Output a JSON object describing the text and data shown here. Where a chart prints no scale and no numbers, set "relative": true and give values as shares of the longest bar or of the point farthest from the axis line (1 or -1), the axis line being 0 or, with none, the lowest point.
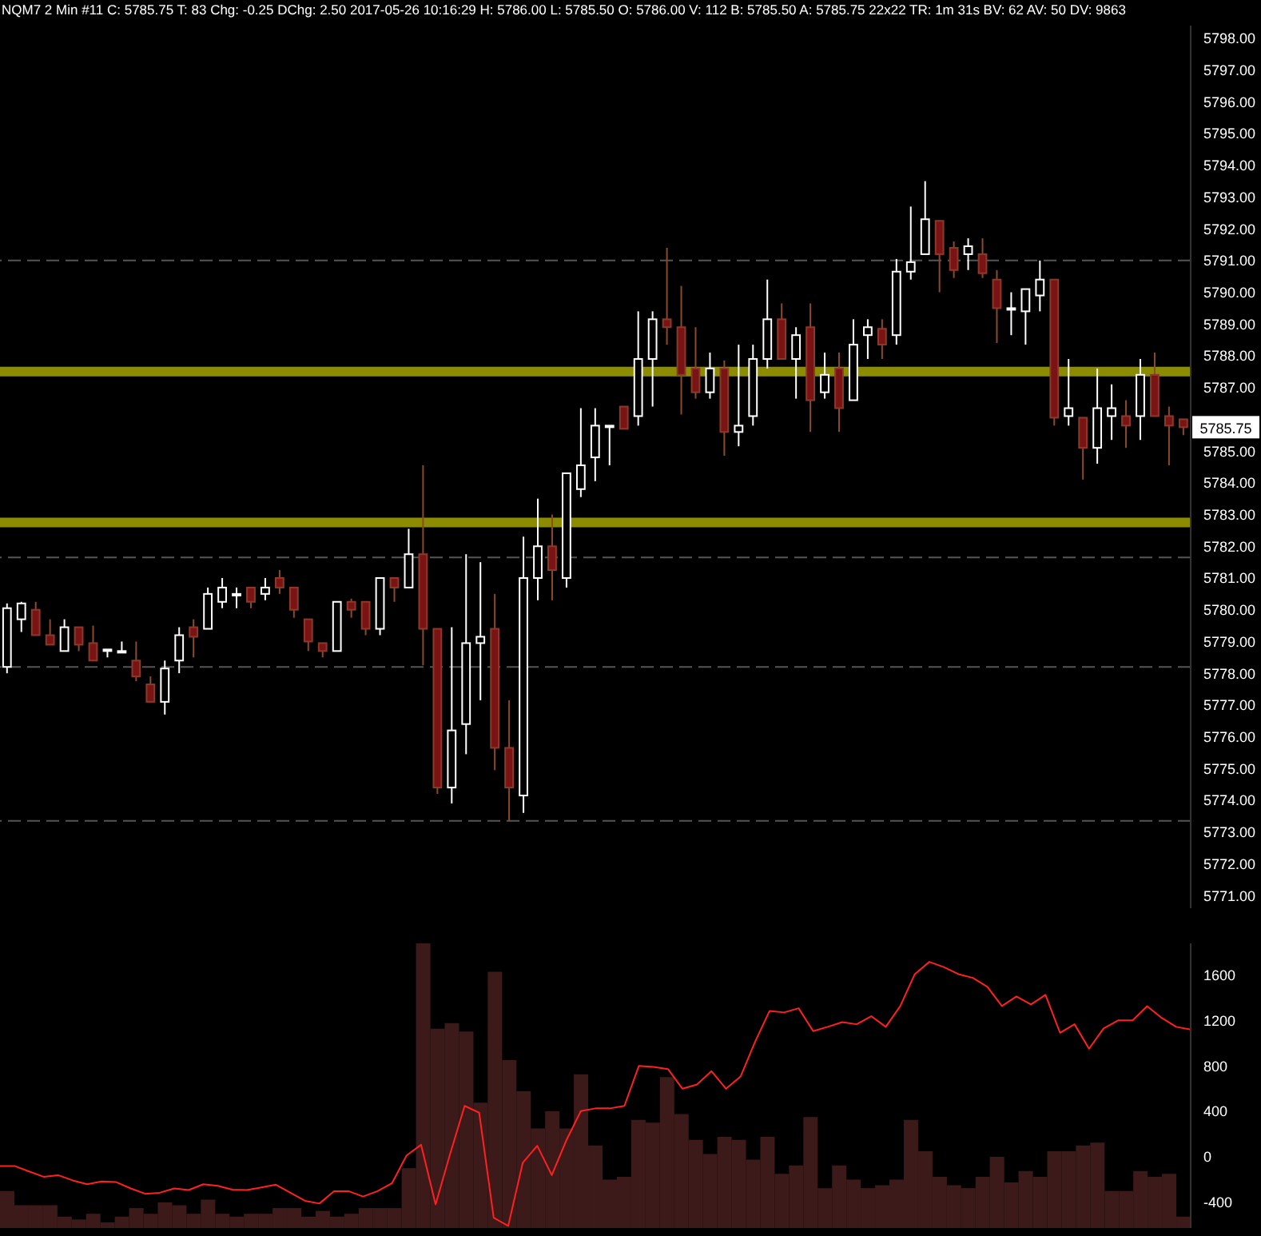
{
  "chart_data": [
    {
      "type": "candlestick",
      "annotations": [
        "NQM7 2 Min #11 C: 5785.75 T: 83 Chg: -0.25 DChg: 2.50 2017-05-26 10:16:29 H: 5786.00 L: 5785.50 O: 5786.00 V: 112 B: 5785.50 A: 5785.75 22x22 TR: 1m 31s BV: 62 AV: 50 DV: 9863",
        {
          "text": "5785.75",
          "y": 5785.75
        }
      ],
      "categories": [
        null,
        null,
        null,
        null,
        null,
        null,
        null,
        null,
        null,
        null,
        null,
        null,
        null,
        null,
        null,
        null,
        null,
        null,
        null,
        null,
        null,
        null,
        null,
        null,
        null,
        null,
        null,
        null,
        null,
        null,
        null,
        null,
        null,
        null,
        null,
        null,
        null,
        null,
        null,
        null,
        null,
        null,
        null,
        null,
        null,
        null,
        null,
        null,
        null,
        null,
        null,
        null,
        null,
        null,
        null,
        null,
        null,
        null,
        null,
        null,
        null,
        null,
        null,
        null,
        null,
        null,
        null,
        null,
        null,
        null,
        null,
        null,
        null,
        null,
        null,
        null,
        null,
        null,
        null,
        null,
        null,
        null,
        null
      ],
      "ohlc": [
        [
          5778.2,
          5780.2,
          5778.0,
          5780.05
        ],
        [
          5779.7,
          5780.25,
          5779.3,
          5780.2
        ],
        [
          5780.0,
          5780.25,
          5779.2,
          5779.2
        ],
        [
          5779.2,
          5779.7,
          5778.9,
          5778.9
        ],
        [
          5778.7,
          5779.7,
          5778.7,
          5779.45
        ],
        [
          5779.45,
          5779.45,
          5778.7,
          5778.9
        ],
        [
          5778.95,
          5779.5,
          5778.4,
          5778.4
        ],
        [
          5778.75,
          5778.75,
          5778.5,
          5778.75
        ],
        [
          5778.7,
          5779.0,
          5778.7,
          5778.7
        ],
        [
          5778.4,
          5779.0,
          5777.75,
          5777.9
        ],
        [
          5777.65,
          5777.9,
          5777.1,
          5777.1
        ],
        [
          5777.1,
          5778.4,
          5776.7,
          5778.15
        ],
        [
          5778.4,
          5779.45,
          5778.0,
          5779.2
        ],
        [
          5779.45,
          5779.7,
          5778.5,
          5779.15
        ],
        [
          5779.4,
          5780.7,
          5779.4,
          5780.5
        ],
        [
          5780.25,
          5781.0,
          5780.05,
          5780.7
        ],
        [
          5780.5,
          5780.7,
          5780.05,
          5780.5
        ],
        [
          5780.7,
          5780.7,
          5780.05,
          5780.25
        ],
        [
          5780.5,
          5781.0,
          5780.3,
          5780.7
        ],
        [
          5781.0,
          5781.25,
          5780.5,
          5780.7
        ],
        [
          5780.7,
          5780.7,
          5779.75,
          5780.0
        ],
        [
          5779.7,
          5779.7,
          5778.7,
          5779.0
        ],
        [
          5778.95,
          5778.95,
          5778.5,
          5778.7
        ],
        [
          5778.7,
          5780.25,
          5778.7,
          5780.25
        ],
        [
          5780.25,
          5780.35,
          5779.75,
          5780.0
        ],
        [
          5780.25,
          5780.25,
          5779.2,
          5779.4
        ],
        [
          5779.4,
          5781.0,
          5779.2,
          5781.0
        ],
        [
          5781.0,
          5781.0,
          5780.25,
          5780.7
        ],
        [
          5780.7,
          5782.55,
          5780.7,
          5781.75
        ],
        [
          5781.75,
          5784.55,
          5778.25,
          5779.4
        ],
        [
          5779.4,
          5779.4,
          5774.2,
          5774.4
        ],
        [
          5774.4,
          5779.45,
          5773.9,
          5776.2
        ],
        [
          5776.4,
          5781.75,
          5775.45,
          5778.95
        ],
        [
          5778.95,
          5781.5,
          5777.15,
          5779.15
        ],
        [
          5779.4,
          5780.5,
          5774.95,
          5775.65
        ],
        [
          5775.65,
          5777.15,
          5773.35,
          5774.4
        ],
        [
          5774.15,
          5782.3,
          5773.6,
          5781.0
        ],
        [
          5781.0,
          5783.5,
          5780.3,
          5782.0
        ],
        [
          5782.0,
          5783.0,
          5780.3,
          5781.25
        ],
        [
          5781.0,
          5784.3,
          5780.7,
          5784.3
        ],
        [
          5783.8,
          5786.35,
          5783.55,
          5784.55
        ],
        [
          5784.8,
          5786.35,
          5784.05,
          5785.8
        ],
        [
          5785.8,
          5785.8,
          5784.55,
          5785.8
        ],
        [
          5786.4,
          5786.4,
          5785.7,
          5785.7
        ],
        [
          5786.1,
          5789.4,
          5785.8,
          5787.9
        ],
        [
          5787.9,
          5789.4,
          5786.4,
          5789.15
        ],
        [
          5789.15,
          5791.4,
          5788.35,
          5788.9
        ],
        [
          5788.9,
          5790.2,
          5786.15,
          5787.4
        ],
        [
          5787.6,
          5788.9,
          5786.65,
          5786.85
        ],
        [
          5786.85,
          5788.1,
          5786.65,
          5787.6
        ],
        [
          5787.6,
          5787.85,
          5784.85,
          5785.6
        ],
        [
          5785.6,
          5788.35,
          5785.15,
          5785.8
        ],
        [
          5786.1,
          5788.35,
          5785.8,
          5787.9
        ],
        [
          5787.9,
          5790.4,
          5787.6,
          5789.15
        ],
        [
          5789.15,
          5789.65,
          5787.9,
          5787.9
        ],
        [
          5787.9,
          5788.9,
          5786.65,
          5788.65
        ],
        [
          5788.9,
          5789.65,
          5785.6,
          5786.6
        ],
        [
          5786.85,
          5788.1,
          5786.65,
          5787.4
        ],
        [
          5787.6,
          5788.1,
          5785.6,
          5786.35
        ],
        [
          5786.6,
          5789.15,
          5786.6,
          5788.35
        ],
        [
          5788.65,
          5789.15,
          5787.9,
          5788.9
        ],
        [
          5788.85,
          5789.15,
          5787.9,
          5788.35
        ],
        [
          5788.65,
          5791.05,
          5788.35,
          5790.65
        ],
        [
          5790.65,
          5792.7,
          5790.4,
          5790.95
        ],
        [
          5791.2,
          5793.5,
          5791.2,
          5792.3
        ],
        [
          5792.25,
          5792.25,
          5790.0,
          5791.2
        ],
        [
          5791.4,
          5791.6,
          5790.45,
          5790.7
        ],
        [
          5791.2,
          5791.7,
          5790.7,
          5791.45
        ],
        [
          5791.2,
          5791.7,
          5790.45,
          5790.6
        ],
        [
          5790.4,
          5790.7,
          5788.4,
          5789.5
        ],
        [
          5789.5,
          5790.0,
          5788.65,
          5789.5
        ],
        [
          5789.4,
          5790.1,
          5788.35,
          5790.1
        ],
        [
          5789.9,
          5791.0,
          5789.4,
          5790.4
        ],
        [
          5790.4,
          5790.4,
          5785.8,
          5786.05
        ],
        [
          5786.1,
          5787.9,
          5785.8,
          5786.35
        ],
        [
          5786.05,
          5786.05,
          5784.1,
          5785.1
        ],
        [
          5785.1,
          5787.6,
          5784.6,
          5786.35
        ],
        [
          5786.1,
          5787.1,
          5785.35,
          5786.35
        ],
        [
          5786.1,
          5786.6,
          5785.1,
          5785.8
        ],
        [
          5786.1,
          5787.9,
          5785.35,
          5787.4
        ],
        [
          5787.4,
          5788.1,
          5786.1,
          5786.1
        ],
        [
          5786.1,
          5786.4,
          5784.55,
          5785.8
        ],
        [
          5786.0,
          5786.0,
          5785.5,
          5785.75
        ]
      ],
      "ylim": [
        5770.6,
        5798.4
      ],
      "yticks": [
        {
          "value": 5771,
          "label": "5771.00"
        },
        {
          "value": 5772,
          "label": "5772.00"
        },
        {
          "value": 5773,
          "label": "5773.00"
        },
        {
          "value": 5774,
          "label": "5774.00"
        },
        {
          "value": 5775,
          "label": "5775.00"
        },
        {
          "value": 5776,
          "label": "5776.00"
        },
        {
          "value": 5777,
          "label": "5777.00"
        },
        {
          "value": 5778,
          "label": "5778.00"
        },
        {
          "value": 5779,
          "label": "5779.00"
        },
        {
          "value": 5780,
          "label": "5780.00"
        },
        {
          "value": 5781,
          "label": "5781.00"
        },
        {
          "value": 5782,
          "label": "5782.00"
        },
        {
          "value": 5783,
          "label": "5783.00"
        },
        {
          "value": 5784,
          "label": "5784.00"
        },
        {
          "value": 5785,
          "label": "5785.00"
        },
        {
          "value": 5787,
          "label": "5787.00"
        },
        {
          "value": 5788,
          "label": "5788.00"
        },
        {
          "value": 5789,
          "label": "5789.00"
        },
        {
          "value": 5790,
          "label": "5790.00"
        },
        {
          "value": 5791,
          "label": "5791.00"
        },
        {
          "value": 5792,
          "label": "5792.00"
        },
        {
          "value": 5793,
          "label": "5793.00"
        },
        {
          "value": 5794,
          "label": "5794.00"
        },
        {
          "value": 5795,
          "label": "5795.00"
        },
        {
          "value": 5796,
          "label": "5796.00"
        },
        {
          "value": 5797,
          "label": "5797.00"
        },
        {
          "value": 5798,
          "label": "5798.00"
        }
      ],
      "ref_lines": [
        {
          "axis": "y",
          "value": 5782.75,
          "color": "#8c8c00",
          "line_style": "solid"
        },
        {
          "axis": "y",
          "value": 5787.5,
          "color": "#8c8c00",
          "line_style": "solid"
        },
        {
          "axis": "y",
          "value": 5791.0,
          "color": "#555555",
          "line_style": "dashed"
        },
        {
          "axis": "y",
          "value": 5781.65,
          "color": "#555555",
          "line_style": "dashed"
        },
        {
          "axis": "y",
          "value": 5778.2,
          "color": "#555555",
          "line_style": "dashed"
        },
        {
          "axis": "y",
          "value": 5773.35,
          "color": "#555555",
          "line_style": "dashed"
        }
      ],
      "tick_labels": "y"
    },
    {
      "type": "bar",
      "relative": true,
      "color": "#3d1a1a",
      "tick_labels": false,
      "categories": [
        null,
        null,
        null,
        null,
        null,
        null,
        null,
        null,
        null,
        null,
        null,
        null,
        null,
        null,
        null,
        null,
        null,
        null,
        null,
        null,
        null,
        null,
        null,
        null,
        null,
        null,
        null,
        null,
        null,
        null,
        null,
        null,
        null,
        null,
        null,
        null,
        null,
        null,
        null,
        null,
        null,
        null,
        null,
        null,
        null,
        null,
        null,
        null,
        null,
        null,
        null,
        null,
        null,
        null,
        null,
        null,
        null,
        null,
        null,
        null,
        null,
        null,
        null,
        null,
        null,
        null,
        null,
        null,
        null,
        null,
        null,
        null,
        null,
        null,
        null,
        null,
        null,
        null,
        null,
        null,
        null,
        null,
        null
      ],
      "values": [
        0.13,
        0.08,
        0.08,
        0.08,
        0.04,
        0.03,
        0.05,
        0.02,
        0.04,
        0.07,
        0.05,
        0.09,
        0.08,
        0.05,
        0.1,
        0.05,
        0.04,
        0.05,
        0.05,
        0.07,
        0.07,
        0.04,
        0.06,
        0.04,
        0.05,
        0.07,
        0.07,
        0.07,
        0.21,
        1,
        0.7,
        0.72,
        0.69,
        0.44,
        0.9,
        0.59,
        0.48,
        0.35,
        0.41,
        0.35,
        0.54,
        0.29,
        0.17,
        0.18,
        0.38,
        0.37,
        0.53,
        0.4,
        0.31,
        0.26,
        0.32,
        0.31,
        0.24,
        0.32,
        0.19,
        0.22,
        0.39,
        0.14,
        0.22,
        0.17,
        0.14,
        0.15,
        0.17,
        0.38,
        0.27,
        0.18,
        0.15,
        0.14,
        0.18,
        0.25,
        0.16,
        0.2,
        0.18,
        0.27,
        0.27,
        0.29,
        0.3,
        0.13,
        0.13,
        0.2,
        0.18,
        0.19,
        0.04
      ]
    },
    {
      "type": "line",
      "color": "#ff2020",
      "tick_labels": "y",
      "marker": "none",
      "categories": [
        null,
        null,
        null,
        null,
        null,
        null,
        null,
        null,
        null,
        null,
        null,
        null,
        null,
        null,
        null,
        null,
        null,
        null,
        null,
        null,
        null,
        null,
        null,
        null,
        null,
        null,
        null,
        null,
        null,
        null,
        null,
        null,
        null,
        null,
        null,
        null,
        null,
        null,
        null,
        null,
        null,
        null,
        null,
        null,
        null,
        null,
        null,
        null,
        null,
        null,
        null,
        null,
        null,
        null,
        null,
        null,
        null,
        null,
        null,
        null,
        null,
        null,
        null,
        null,
        null,
        null,
        null,
        null,
        null,
        null,
        null,
        null,
        null,
        null,
        null,
        null,
        null,
        null,
        null,
        null,
        null,
        null,
        null
      ],
      "values": [
        -83,
        -83,
        -131,
        -178,
        -164,
        -210,
        -244,
        -220,
        -225,
        -281,
        -328,
        -319,
        -281,
        -295,
        -244,
        -258,
        -291,
        -295,
        -272,
        -248,
        -319,
        -390,
        -414,
        -305,
        -305,
        -352,
        -305,
        -234,
        10,
        104,
        -422,
        24,
        447,
        387,
        -540,
        -611,
        -55,
        95,
        -164,
        142,
        401,
        425,
        425,
        447,
        800,
        790,
        772,
        598,
        636,
        753,
        598,
        706,
        1012,
        1285,
        1271,
        1308,
        1106,
        1144,
        1186,
        1167,
        1238,
        1144,
        1327,
        1609,
        1717,
        1671,
        1609,
        1576,
        1497,
        1327,
        1412,
        1341,
        1426,
        1092,
        1167,
        951,
        1130,
        1201,
        1201,
        1327,
        1223,
        1144,
        1120
      ],
      "ylim": [
        -630,
        1880
      ],
      "yticks": [
        -400,
        0,
        400,
        800,
        1200,
        1600
      ]
    }
  ]
}
